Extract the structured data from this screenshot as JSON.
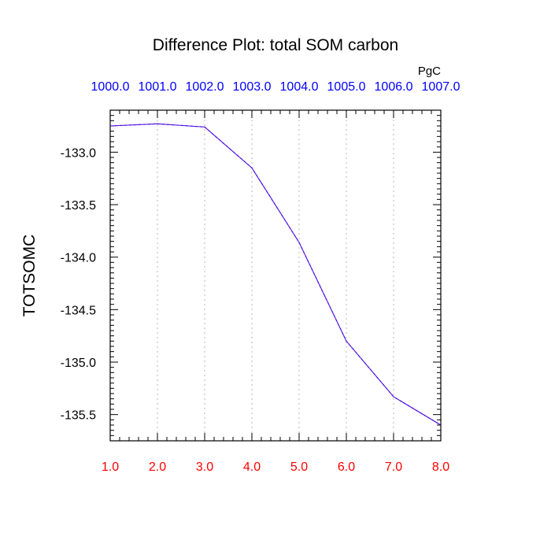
{
  "chart_data": {
    "type": "line",
    "title": "Difference Plot: total SOM carbon",
    "units": "PgC",
    "ylabel": "TOTSOMC",
    "xlabel": "",
    "x": [
      1,
      2,
      3,
      4,
      5,
      6,
      7,
      8
    ],
    "x_tick_labels": [
      "1.0",
      "2.0",
      "3.0",
      "4.0",
      "5.0",
      "6.0",
      "7.0",
      "8.0"
    ],
    "top_tick_labels": [
      "1000.0",
      "1001.0",
      "1002.0",
      "1003.0",
      "1004.0",
      "1005.0",
      "1006.0",
      "1007.0"
    ],
    "xlim": [
      1,
      8
    ],
    "ylim": [
      -135.75,
      -132.6
    ],
    "y_ticks": [
      -133.0,
      -133.5,
      -134.0,
      -134.5,
      -135.0,
      -135.5
    ],
    "y_tick_labels": [
      "-133.0",
      "-133.5",
      "-134.0",
      "-134.5",
      "-135.0",
      "-135.5"
    ],
    "series": [
      {
        "values": [
          -132.75,
          -132.73,
          -132.76,
          -133.15,
          -133.86,
          -134.8,
          -135.33,
          -135.6
        ]
      }
    ],
    "grid": "vertical dotted",
    "colors": {
      "line": "#7a00c8",
      "line_dash": "#1a1aff",
      "bottom_ticks": "#ff0000",
      "top_ticks": "#0000ff",
      "grid": "#c8c8c8"
    }
  }
}
